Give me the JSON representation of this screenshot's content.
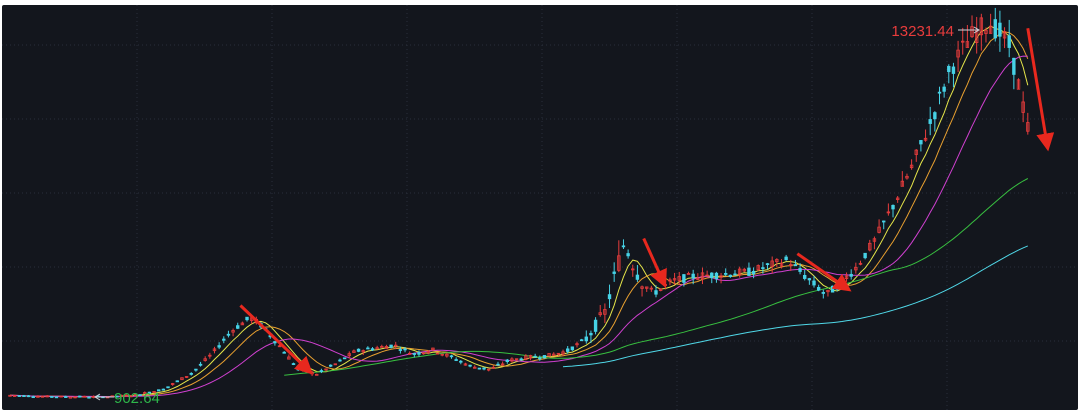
{
  "chart_data": {
    "type": "candlestick",
    "annotations": {
      "high_label": "13231.44",
      "low_label": "902.64"
    },
    "ma_series": [
      {
        "color": "#e6e64a"
      },
      {
        "color": "#e8a030"
      },
      {
        "color": "#d040d0"
      },
      {
        "color": "#38c040"
      },
      {
        "color": "#50d8e8"
      }
    ],
    "colors": {
      "up": "#e83c3c",
      "down": "#46d2e6",
      "high_label": "#e83c3c",
      "low_label": "#2eb84a",
      "arrow": "#e8281e",
      "grid": "#2a2f3a",
      "background": "#13161d"
    },
    "price_range": [
      700,
      13500
    ],
    "trend_path": [
      [
        0,
        950
      ],
      [
        3,
        920
      ],
      [
        6,
        905
      ],
      [
        10,
        902.64
      ],
      [
        13,
        960
      ],
      [
        16,
        1150
      ],
      [
        19,
        1700
      ],
      [
        21,
        2300
      ],
      [
        23,
        3050
      ],
      [
        25,
        3500
      ],
      [
        26,
        3300
      ],
      [
        28,
        2600
      ],
      [
        30,
        1800
      ],
      [
        32,
        1650
      ],
      [
        34,
        2000
      ],
      [
        36,
        2400
      ],
      [
        38,
        2500
      ],
      [
        40,
        2600
      ],
      [
        42,
        2300
      ],
      [
        44,
        2450
      ],
      [
        46,
        2200
      ],
      [
        48,
        1900
      ],
      [
        50,
        1800
      ],
      [
        52,
        2100
      ],
      [
        54,
        2200
      ],
      [
        56,
        2250
      ],
      [
        58,
        2400
      ],
      [
        60,
        2800
      ],
      [
        62,
        3700
      ],
      [
        63,
        4900
      ],
      [
        64,
        6000
      ],
      [
        65,
        5200
      ],
      [
        66,
        4600
      ],
      [
        67,
        4300
      ],
      [
        69,
        4700
      ],
      [
        71,
        4850
      ],
      [
        73,
        4900
      ],
      [
        75,
        4950
      ],
      [
        77,
        5000
      ],
      [
        79,
        5200
      ],
      [
        81,
        5400
      ],
      [
        83,
        4800
      ],
      [
        85,
        4250
      ],
      [
        86,
        4500
      ],
      [
        88,
        5100
      ],
      [
        90,
        6000
      ],
      [
        92,
        7200
      ],
      [
        94,
        8500
      ],
      [
        96,
        10000
      ],
      [
        98,
        11700
      ],
      [
        100,
        12700
      ],
      [
        102,
        13231.44
      ],
      [
        104,
        12500
      ],
      [
        105,
        11200
      ],
      [
        106,
        9700
      ]
    ],
    "arrows": [
      {
        "from": [
          24,
          3900
        ],
        "to": [
          31,
          1800
        ]
      },
      {
        "from": [
          66,
          6100
        ],
        "to": [
          68,
          4700
        ]
      },
      {
        "from": [
          82,
          5600
        ],
        "to": [
          87,
          4500
        ]
      },
      {
        "from": [
          106,
          13000
        ],
        "to": [
          108,
          9200
        ]
      }
    ]
  }
}
